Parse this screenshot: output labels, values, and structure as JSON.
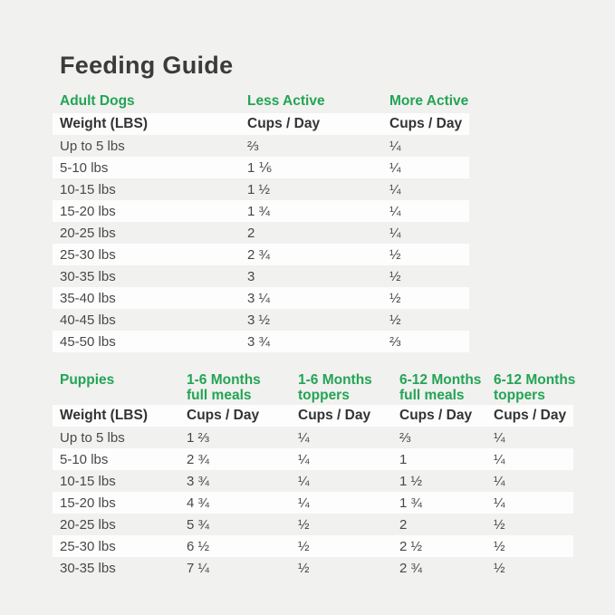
{
  "page": {
    "title": "Feeding Guide",
    "background_color": "#f1f1ef",
    "stripe_color": "#fdfdfd",
    "accent_green": "#23a455"
  },
  "adult_table": {
    "section_label": "Adult Dogs",
    "activity_headers": [
      "Less Active",
      "More Active"
    ],
    "weight_header": "Weight (LBS)",
    "unit_header": "Cups / Day",
    "rows": [
      [
        "Up to 5 lbs",
        "⅔",
        "¼"
      ],
      [
        "5-10 lbs",
        "1 ⅙",
        "¼"
      ],
      [
        "10-15 lbs",
        "1 ½",
        "¼"
      ],
      [
        "15-20 lbs",
        "1 ¾",
        "¼"
      ],
      [
        "20-25 lbs",
        "2",
        "¼"
      ],
      [
        "25-30 lbs",
        "2 ¾",
        "½"
      ],
      [
        "30-35 lbs",
        "3",
        "½"
      ],
      [
        "35-40 lbs",
        "3 ¼",
        "½"
      ],
      [
        "40-45 lbs",
        "3 ½",
        "½"
      ],
      [
        "45-50 lbs",
        "3 ¾",
        "⅔"
      ]
    ]
  },
  "puppies_table": {
    "section_label": "Puppies",
    "age_headers": [
      {
        "line1": "1-6 Months",
        "line2": "full meals"
      },
      {
        "line1": "1-6 Months",
        "line2": "toppers"
      },
      {
        "line1": "6-12 Months",
        "line2": "full meals"
      },
      {
        "line1": "6-12 Months",
        "line2": "toppers"
      }
    ],
    "weight_header": "Weight (LBS)",
    "unit_header": "Cups / Day",
    "rows": [
      [
        "Up to 5 lbs",
        "1 ⅔",
        "¼",
        "⅔",
        "¼"
      ],
      [
        "5-10 lbs",
        "2 ¾",
        "¼",
        "1",
        "¼"
      ],
      [
        "10-15 lbs",
        "3 ¾",
        "¼",
        "1 ½",
        "¼"
      ],
      [
        "15-20 lbs",
        "4 ¾",
        "¼",
        "1 ¾",
        "¼"
      ],
      [
        "20-25 lbs",
        "5 ¾",
        "½",
        "2",
        "½"
      ],
      [
        "25-30 lbs",
        "6 ½",
        "½",
        "2 ½",
        "½"
      ],
      [
        "30-35 lbs",
        "7 ¼",
        "½",
        "2 ¾",
        "½"
      ]
    ]
  }
}
